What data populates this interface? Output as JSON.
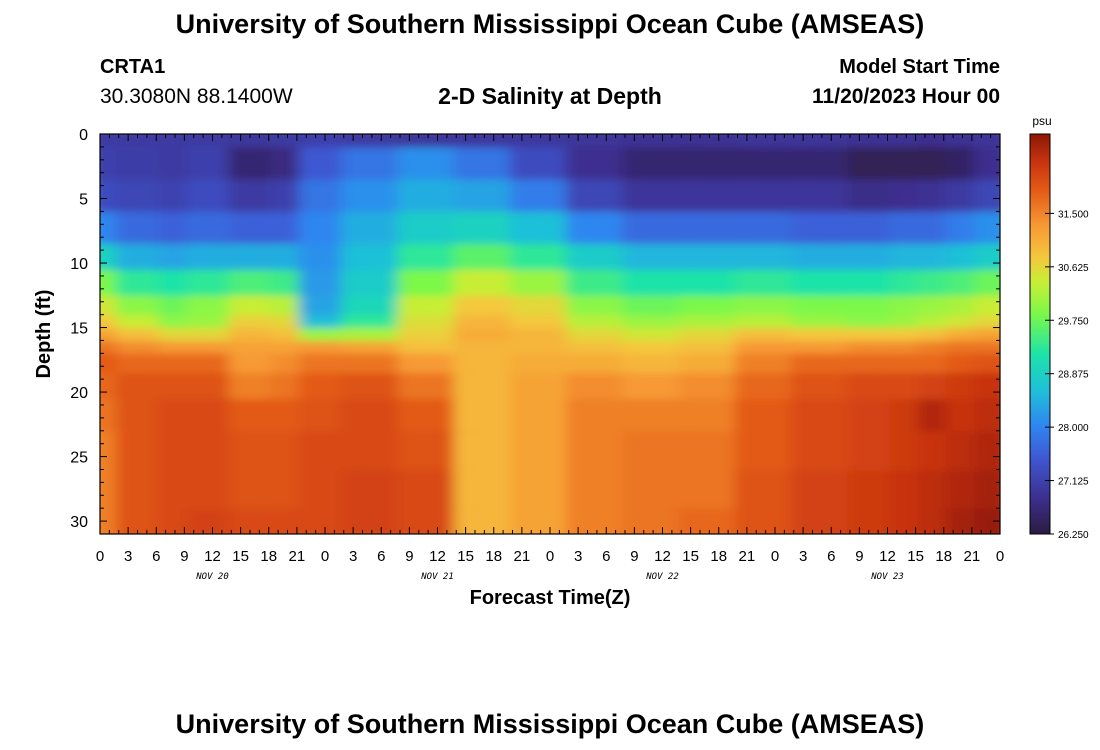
{
  "header": {
    "title": "University of Southern Mississippi Ocean Cube (AMSEAS)",
    "station": "CRTA1",
    "coordinates": "30.3080N  88.1400W",
    "subtitle": "2-D Salinity at Depth",
    "model_start_label": "Model Start Time",
    "model_start_value": "11/20/2023 Hour 00"
  },
  "footer": {
    "title": "University of Southern Mississippi Ocean Cube (AMSEAS)"
  },
  "chart_data": {
    "type": "heatmap",
    "title": "2-D Salinity at Depth",
    "xlabel": "Forecast Time(Z)",
    "ylabel": "Depth (ft)",
    "x_unit": "hours from model start",
    "x_range": [
      0,
      96
    ],
    "x_ticks": [
      0,
      3,
      6,
      9,
      12,
      15,
      18,
      21,
      24,
      27,
      30,
      33,
      36,
      39,
      42,
      45,
      48,
      51,
      54,
      57,
      60,
      63,
      66,
      69,
      72,
      75,
      78,
      81,
      84,
      87,
      90,
      93,
      96
    ],
    "x_tick_labels": [
      "0",
      "3",
      "6",
      "9",
      "12",
      "15",
      "18",
      "21",
      "0",
      "3",
      "6",
      "9",
      "12",
      "15",
      "18",
      "21",
      "0",
      "3",
      "6",
      "9",
      "12",
      "15",
      "18",
      "21",
      "0",
      "3",
      "6",
      "9",
      "12",
      "15",
      "18",
      "21",
      "0"
    ],
    "date_labels": [
      {
        "label": "NOV 20",
        "hour": 12
      },
      {
        "label": "NOV 21",
        "hour": 36
      },
      {
        "label": "NOV 22",
        "hour": 60
      },
      {
        "label": "NOV 23",
        "hour": 84
      }
    ],
    "y_range": [
      0,
      31
    ],
    "y_ticks": [
      0,
      5,
      10,
      15,
      20,
      25,
      30
    ],
    "y_tick_labels": [
      "0",
      "5",
      "10",
      "15",
      "20",
      "25",
      "30"
    ],
    "colorbar": {
      "unit": "psu",
      "min": 26.25,
      "max": 32.8,
      "ticks": [
        31.5,
        30.625,
        29.75,
        28.875,
        28.0,
        27.125,
        26.25
      ],
      "tick_labels": [
        "31.500",
        "30.625",
        "29.750",
        "28.875",
        "28.000",
        "27.125",
        "26.250"
      ]
    },
    "depths_ft": [
      0,
      3,
      5,
      8,
      10,
      12,
      14,
      15,
      16,
      17,
      18,
      20,
      22,
      25,
      28,
      31
    ],
    "times_hr": [
      0,
      6,
      9,
      12,
      18,
      21,
      24,
      30,
      36,
      42,
      48,
      54,
      60,
      66,
      72,
      78,
      84,
      87,
      90,
      93,
      96
    ],
    "salinity_psu": [
      [
        27.0,
        27.0,
        27.0,
        27.0,
        26.95,
        27.0,
        27.1,
        27.0,
        26.95,
        26.95,
        26.95,
        26.9,
        26.85,
        26.85,
        26.9,
        26.9,
        26.85,
        26.85,
        26.8,
        26.85,
        26.9
      ],
      [
        27.1,
        27.05,
        27.0,
        27.1,
        26.6,
        26.7,
        27.5,
        27.8,
        28.1,
        27.8,
        27.3,
        26.8,
        26.6,
        26.6,
        26.6,
        26.6,
        26.4,
        26.4,
        26.4,
        26.5,
        26.8
      ],
      [
        27.3,
        27.2,
        27.15,
        27.3,
        27.0,
        27.1,
        27.8,
        28.1,
        28.4,
        28.3,
        27.9,
        27.2,
        26.9,
        26.9,
        26.9,
        26.9,
        26.75,
        26.8,
        26.85,
        27.0,
        27.2
      ],
      [
        28.0,
        27.7,
        27.6,
        27.7,
        27.6,
        27.6,
        28.0,
        28.4,
        28.8,
        28.9,
        28.6,
        28.0,
        27.7,
        27.7,
        27.7,
        27.6,
        27.6,
        27.7,
        27.7,
        27.9,
        28.1
      ],
      [
        28.9,
        28.4,
        28.3,
        28.4,
        28.4,
        28.4,
        28.1,
        28.6,
        29.3,
        29.6,
        29.3,
        28.8,
        28.5,
        28.5,
        28.5,
        28.4,
        28.4,
        28.5,
        28.5,
        28.6,
        28.8
      ],
      [
        29.8,
        29.3,
        29.2,
        29.3,
        29.5,
        29.4,
        28.2,
        28.8,
        29.8,
        30.3,
        30.0,
        29.4,
        29.2,
        29.2,
        29.3,
        29.2,
        29.2,
        29.3,
        29.4,
        29.5,
        29.7
      ],
      [
        30.4,
        29.9,
        29.7,
        29.9,
        30.3,
        30.2,
        28.3,
        29.0,
        30.3,
        30.8,
        30.6,
        29.9,
        29.7,
        29.8,
        29.9,
        29.8,
        29.8,
        29.9,
        30.0,
        30.1,
        30.3
      ],
      [
        30.8,
        30.3,
        29.9,
        30.0,
        30.7,
        30.6,
        28.6,
        29.3,
        30.5,
        31.0,
        30.8,
        30.2,
        30.0,
        30.1,
        30.2,
        30.0,
        29.9,
        30.0,
        30.2,
        30.4,
        30.6
      ],
      [
        31.2,
        30.9,
        30.6,
        30.6,
        31.0,
        30.9,
        30.0,
        30.1,
        30.7,
        31.1,
        31.0,
        30.6,
        30.4,
        30.6,
        30.9,
        30.8,
        30.8,
        30.8,
        30.9,
        31.1,
        31.2
      ],
      [
        31.6,
        31.4,
        31.3,
        31.3,
        31.2,
        31.2,
        31.3,
        31.2,
        30.9,
        31.0,
        31.0,
        30.9,
        30.8,
        30.9,
        31.3,
        31.3,
        31.4,
        31.4,
        31.5,
        31.6,
        31.6
      ],
      [
        31.8,
        31.7,
        31.7,
        31.7,
        31.3,
        31.4,
        31.6,
        31.6,
        31.3,
        31.0,
        31.1,
        31.1,
        31.0,
        31.1,
        31.5,
        31.7,
        31.7,
        31.7,
        31.7,
        31.8,
        31.9
      ],
      [
        31.7,
        31.9,
        31.9,
        31.9,
        31.5,
        31.6,
        31.8,
        31.9,
        31.6,
        31.0,
        31.2,
        31.4,
        31.3,
        31.4,
        31.7,
        31.9,
        32.0,
        32.0,
        32.1,
        32.2,
        32.3
      ],
      [
        31.6,
        31.9,
        32.0,
        32.0,
        31.8,
        31.8,
        31.9,
        32.0,
        31.8,
        31.0,
        31.2,
        31.5,
        31.5,
        31.5,
        31.8,
        32.0,
        32.1,
        32.2,
        32.5,
        32.3,
        32.4
      ],
      [
        31.5,
        31.9,
        32.0,
        32.0,
        31.9,
        31.9,
        32.0,
        32.0,
        31.9,
        31.0,
        31.2,
        31.5,
        31.6,
        31.6,
        31.8,
        32.0,
        32.1,
        32.2,
        32.3,
        32.4,
        32.5
      ],
      [
        31.5,
        31.9,
        32.0,
        32.0,
        31.9,
        31.9,
        32.0,
        32.1,
        32.0,
        31.0,
        31.2,
        31.5,
        31.6,
        31.6,
        31.9,
        32.1,
        32.2,
        32.3,
        32.4,
        32.5,
        32.6
      ],
      [
        31.5,
        31.9,
        32.0,
        32.1,
        32.0,
        32.0,
        32.0,
        32.1,
        32.0,
        31.0,
        31.2,
        31.5,
        31.6,
        31.7,
        31.9,
        32.1,
        32.2,
        32.3,
        32.4,
        32.6,
        32.7
      ]
    ]
  }
}
